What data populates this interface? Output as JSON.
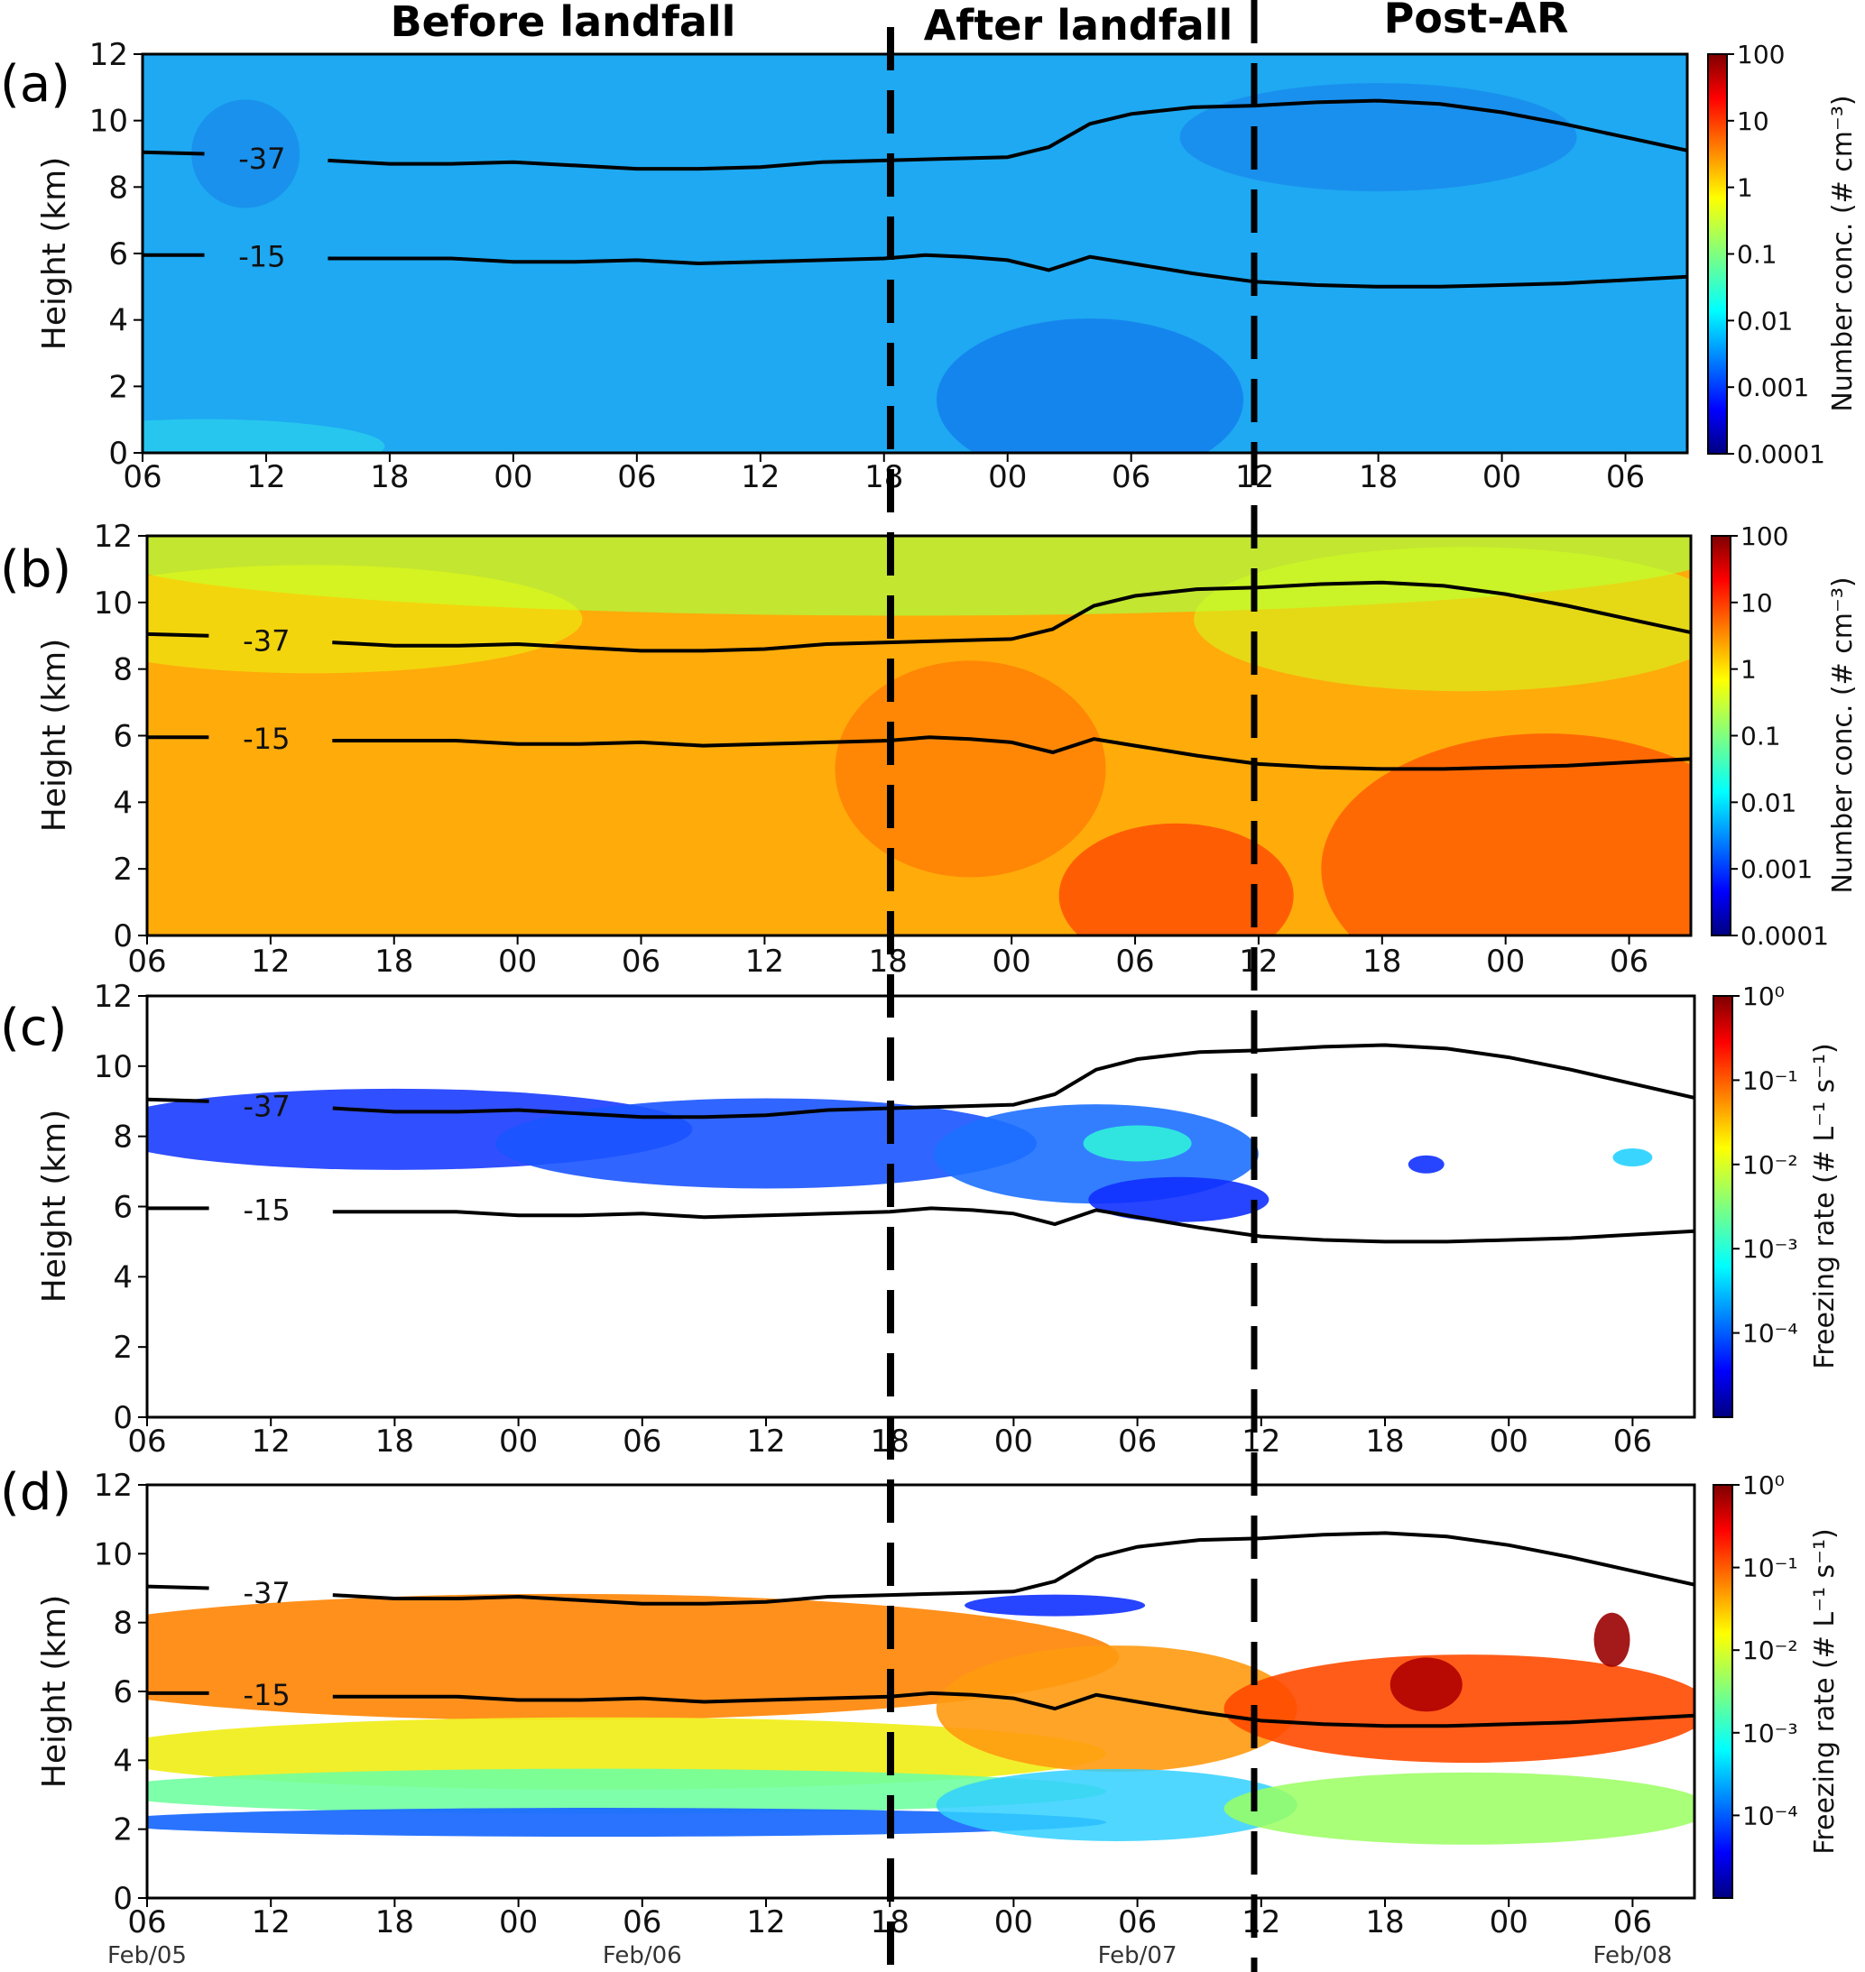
{
  "headers": [
    "Before landfall",
    "After landfall",
    "Post-AR"
  ],
  "x_tick_labels": [
    "06",
    "12",
    "18",
    "00",
    "06",
    "12",
    "18",
    "00",
    "06",
    "12",
    "18",
    "00",
    "06"
  ],
  "date_labels": [
    "Feb/05",
    "Feb/06",
    "Feb/07",
    "Feb/08"
  ],
  "y_tick_labels": [
    "0",
    "2",
    "4",
    "6",
    "8",
    "10",
    "12"
  ],
  "ylabel": "Height (km)",
  "contour_labels": [
    "-37",
    "-15"
  ],
  "colormap": "jet",
  "panels": [
    {
      "letter": "(a)",
      "colorbar_title": "Number conc. (# cm⁻³)",
      "colorbar_ticks": [
        "100",
        "10",
        "1",
        "0.1",
        "0.01",
        "0.001",
        "0.0001"
      ],
      "show_dates": false
    },
    {
      "letter": "(b)",
      "colorbar_title": "Number conc. (# cm⁻³)",
      "colorbar_ticks": [
        "100",
        "10",
        "1",
        "0.1",
        "0.01",
        "0.001",
        "0.0001"
      ],
      "show_dates": false
    },
    {
      "letter": "(c)",
      "colorbar_title": "Freezing rate (# L⁻¹ s⁻¹)",
      "colorbar_ticks": [
        "10⁰",
        "10⁻¹",
        "10⁻²",
        "10⁻³",
        "10⁻⁴"
      ],
      "show_dates": false
    },
    {
      "letter": "(d)",
      "colorbar_title": "Freezing rate (# L⁻¹ s⁻¹)",
      "colorbar_ticks": [
        "10⁰",
        "10⁻¹",
        "10⁻²",
        "10⁻³",
        "10⁻⁴"
      ],
      "show_dates": true
    }
  ],
  "chart_data": [
    {
      "type": "heatmap",
      "panel": "(a)",
      "x_range_hours": [
        0,
        75
      ],
      "ylim": [
        0,
        12
      ],
      "x_start": "Feb/05 06",
      "ylabel": "Height (km)",
      "colorbar": {
        "label": "Number conc. (# cm^-3)",
        "scale": "log",
        "range": [
          0.0001,
          100
        ]
      },
      "summary": "Uniform low values ~0.001 (blue) over the full domain, slightly higher near the surface at the start.",
      "landfall_markers_hours": [
        36,
        54
      ],
      "contours": {
        "-37": [
          [
            0,
            9.05
          ],
          [
            3,
            9.0
          ],
          [
            6,
            8.85
          ],
          [
            9,
            8.8
          ],
          [
            12,
            8.7
          ],
          [
            15,
            8.7
          ],
          [
            18,
            8.75
          ],
          [
            21,
            8.65
          ],
          [
            24,
            8.55
          ],
          [
            27,
            8.55
          ],
          [
            30,
            8.6
          ],
          [
            33,
            8.75
          ],
          [
            36,
            8.8
          ],
          [
            39,
            8.85
          ],
          [
            42,
            8.9
          ],
          [
            44,
            9.2
          ],
          [
            46,
            9.9
          ],
          [
            48,
            10.2
          ],
          [
            51,
            10.4
          ],
          [
            54,
            10.45
          ],
          [
            57,
            10.55
          ],
          [
            60,
            10.6
          ],
          [
            63,
            10.5
          ],
          [
            66,
            10.25
          ],
          [
            69,
            9.9
          ],
          [
            72,
            9.5
          ],
          [
            75,
            9.1
          ]
        ],
        "-15": [
          [
            0,
            5.95
          ],
          [
            3,
            5.95
          ],
          [
            6,
            5.9
          ],
          [
            9,
            5.85
          ],
          [
            12,
            5.85
          ],
          [
            15,
            5.85
          ],
          [
            18,
            5.75
          ],
          [
            21,
            5.75
          ],
          [
            24,
            5.8
          ],
          [
            27,
            5.7
          ],
          [
            30,
            5.75
          ],
          [
            33,
            5.8
          ],
          [
            36,
            5.85
          ],
          [
            38,
            5.95
          ],
          [
            40,
            5.9
          ],
          [
            42,
            5.8
          ],
          [
            44,
            5.5
          ],
          [
            46,
            5.9
          ],
          [
            48,
            5.7
          ],
          [
            51,
            5.4
          ],
          [
            54,
            5.15
          ],
          [
            57,
            5.05
          ],
          [
            60,
            5.0
          ],
          [
            63,
            5.0
          ],
          [
            66,
            5.05
          ],
          [
            69,
            5.1
          ],
          [
            72,
            5.2
          ],
          [
            75,
            5.3
          ]
        ]
      }
    },
    {
      "type": "heatmap",
      "panel": "(b)",
      "x_range_hours": [
        0,
        75
      ],
      "ylim": [
        0,
        12
      ],
      "x_start": "Feb/05 06",
      "ylabel": "Height (km)",
      "colorbar": {
        "label": "Number conc. (# cm^-3)",
        "scale": "log",
        "range": [
          0.0001,
          100
        ]
      },
      "summary": "Values ~1-10 (yellow-orange) throughout the column, increasing to ~20-50 (red) at low levels after 12 UTC Feb/07; top layer near 12 km ~0.5 (yellow-green).",
      "landfall_markers_hours": [
        36,
        54
      ],
      "contours": "same as panel (a)"
    },
    {
      "type": "heatmap",
      "panel": "(c)",
      "x_range_hours": [
        0,
        75
      ],
      "ylim": [
        0,
        12
      ],
      "x_start": "Feb/05 06",
      "ylabel": "Height (km)",
      "colorbar": {
        "label": "Freezing rate (# L^-1 s^-1)",
        "scale": "log",
        "range": [
          1e-05,
          1
        ]
      },
      "summary": "Sparse low freezing rates (~1e-4 to 1e-3) between ~6 and 10 km before 12 UTC Feb/07, with scattered cells between 6 and 8 km afterwards; no values below ~5 km.",
      "landfall_markers_hours": [
        36,
        54
      ],
      "contours": "same as panel (a)"
    },
    {
      "type": "heatmap",
      "panel": "(d)",
      "x_range_hours": [
        0,
        75
      ],
      "ylim": [
        0,
        12
      ],
      "x_start": "Feb/05 06",
      "ylabel": "Height (km)",
      "colorbar": {
        "label": "Freezing rate (# L^-1 s^-1)",
        "scale": "log",
        "range": [
          1e-05,
          1
        ]
      },
      "summary": "High freezing rates (~1e-2 to 1e-1, orange) between ~4 and 9 km, decreasing to ~1e-4 (blue) near 2 km; maximum (>1e-1, dark red) between 5 and 8 km after 12 UTC Feb/07.",
      "landfall_markers_hours": [
        36,
        54
      ],
      "contours": "same as panel (a)"
    }
  ]
}
